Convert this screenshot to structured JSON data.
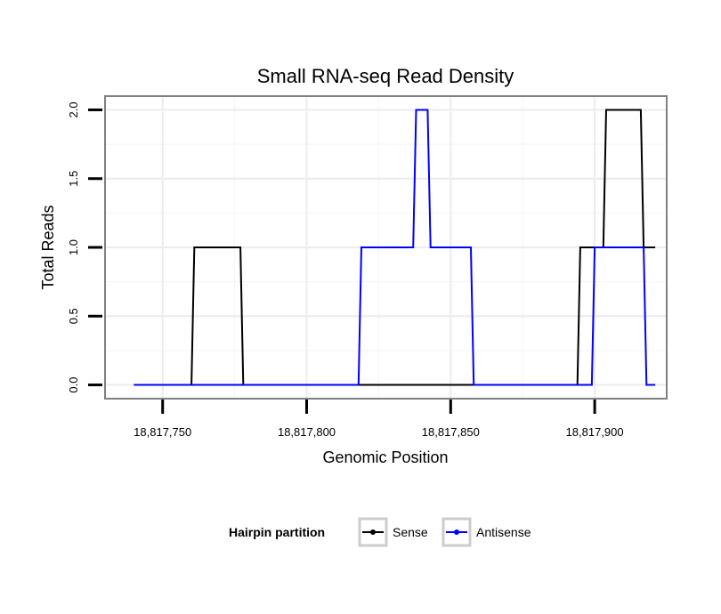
{
  "chart_data": {
    "type": "line",
    "title": "Small RNA-seq Read Density",
    "xlabel": "Genomic Position",
    "ylabel": "Total Reads",
    "xlim": [
      18817730,
      18817925
    ],
    "ylim": [
      -0.1,
      2.1
    ],
    "x_ticks": [
      18817750,
      18817800,
      18817850,
      18817900
    ],
    "x_tick_labels": [
      "18,817,750",
      "18,817,800",
      "18,817,850",
      "18,817,900"
    ],
    "y_ticks": [
      0,
      0.5,
      1,
      1.5,
      2
    ],
    "y_tick_labels": [
      "0.0",
      "0.5",
      "1.0",
      "1.5",
      "2.0"
    ],
    "grid": true,
    "legend": {
      "title": "Hairpin partition",
      "position": "bottom"
    },
    "series": [
      {
        "name": "Sense",
        "color": "#000000",
        "x": [
          18817740,
          18817760,
          18817761,
          18817777,
          18817778,
          18817894,
          18817895,
          18817903,
          18817904,
          18817916,
          18817917,
          18817921
        ],
        "y": [
          0,
          0,
          1,
          1,
          0,
          0,
          1,
          1,
          2,
          2,
          1,
          1
        ]
      },
      {
        "name": "Antisense",
        "color": "#0000ff",
        "x": [
          18817740,
          18817818,
          18817819,
          18817837,
          18817838,
          18817842,
          18817843,
          18817857,
          18817858,
          18817899,
          18817900,
          18817917,
          18817918,
          18817921
        ],
        "y": [
          0,
          0,
          1,
          1,
          2,
          2,
          1,
          1,
          0,
          0,
          1,
          1,
          0,
          0
        ]
      }
    ]
  }
}
